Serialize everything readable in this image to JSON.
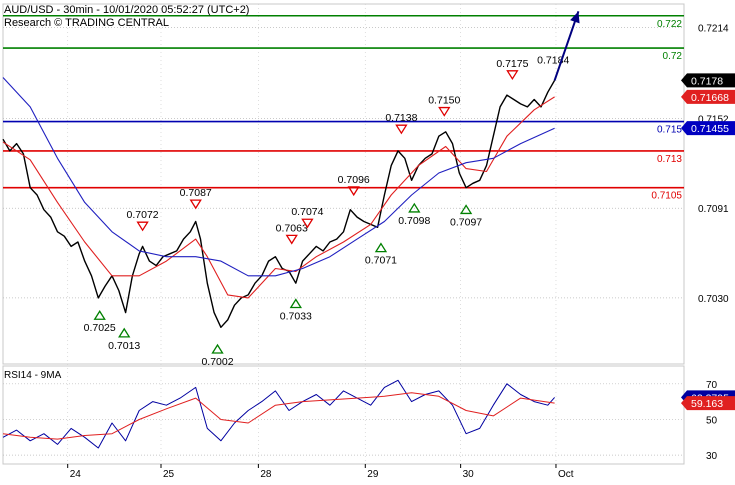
{
  "header": {
    "line1": "AUD/USD - 30min - 10/01/2020 05:52:27 (UTC+2)",
    "line2": "Research © TRADING CENTRAL"
  },
  "colors": {
    "price": "#000000",
    "ma_fast": "#e02020",
    "ma_slow": "#2020c0",
    "target": "#008000",
    "pivot": "#0000b0",
    "support": "#e00000",
    "arrow": "#000080",
    "rsi": "#0000a0",
    "rsi_ma": "#e02020",
    "badge_last": "#000000",
    "badge_ma_fast": "#e02020",
    "badge_ma_slow": "#0000c0",
    "marker_high": "#e00000",
    "marker_low": "#008000"
  },
  "chart_data": [
    {
      "type": "line",
      "panel": "price",
      "ylim": [
        0.6985,
        0.723
      ],
      "y_ticks": [
        "0.7214",
        "0.7152",
        "0.7091",
        "0.7030"
      ],
      "x_labels": [
        {
          "label": "24",
          "t": 0.095
        },
        {
          "label": "25",
          "t": 0.232
        },
        {
          "label": "28",
          "t": 0.375
        },
        {
          "label": "29",
          "t": 0.532
        },
        {
          "label": "30",
          "t": 0.672
        },
        {
          "label": "Oct",
          "t": 0.812
        }
      ],
      "levels": [
        {
          "value": 0.7222,
          "label": "0.722",
          "kind": "target"
        },
        {
          "value": 0.72,
          "label": "0.72",
          "kind": "target"
        },
        {
          "value": 0.715,
          "label": "0.715",
          "kind": "pivot"
        },
        {
          "value": 0.713,
          "label": "0.713",
          "kind": "support"
        },
        {
          "value": 0.7105,
          "label": "0.7105",
          "kind": "support"
        }
      ],
      "badges": [
        {
          "value": 0.7178,
          "label": "0.7178",
          "kind": "last"
        },
        {
          "value": 0.71668,
          "label": "0.71668",
          "kind": "ma_fast"
        },
        {
          "value": 0.71455,
          "label": "0.71455",
          "kind": "ma_slow"
        }
      ],
      "annotations": [
        {
          "label": "0.7072",
          "t": 0.205,
          "value": 0.7072,
          "kind": "high"
        },
        {
          "label": "0.7087",
          "t": 0.283,
          "value": 0.7087,
          "kind": "high"
        },
        {
          "label": "0.7063",
          "t": 0.424,
          "value": 0.7063,
          "kind": "high"
        },
        {
          "label": "0.7074",
          "t": 0.447,
          "value": 0.7074,
          "kind": "high"
        },
        {
          "label": "0.7096",
          "t": 0.515,
          "value": 0.7096,
          "kind": "high"
        },
        {
          "label": "0.7138",
          "t": 0.585,
          "value": 0.7138,
          "kind": "high"
        },
        {
          "label": "0.7150",
          "t": 0.648,
          "value": 0.715,
          "kind": "high"
        },
        {
          "label": "0.7175",
          "t": 0.748,
          "value": 0.7175,
          "kind": "high"
        },
        {
          "label": "0.7184",
          "t": 0.808,
          "value": 0.7184,
          "kind": "plain"
        },
        {
          "label": "0.7025",
          "t": 0.142,
          "value": 0.7025,
          "kind": "low"
        },
        {
          "label": "0.7013",
          "t": 0.178,
          "value": 0.7013,
          "kind": "low"
        },
        {
          "label": "0.7002",
          "t": 0.315,
          "value": 0.7002,
          "kind": "low"
        },
        {
          "label": "0.7033",
          "t": 0.43,
          "value": 0.7033,
          "kind": "low"
        },
        {
          "label": "0.7071",
          "t": 0.555,
          "value": 0.7071,
          "kind": "low"
        },
        {
          "label": "0.7098",
          "t": 0.604,
          "value": 0.7098,
          "kind": "low"
        },
        {
          "label": "0.7097",
          "t": 0.68,
          "value": 0.7097,
          "kind": "low"
        }
      ],
      "projection": {
        "from": [
          0.81,
          0.7178
        ],
        "to": [
          0.845,
          0.7225
        ]
      },
      "series": [
        {
          "role": "price",
          "points": [
            [
              0.0,
              0.7138
            ],
            [
              0.01,
              0.713
            ],
            [
              0.02,
              0.7135
            ],
            [
              0.03,
              0.7128
            ],
            [
              0.04,
              0.7105
            ],
            [
              0.05,
              0.71
            ],
            [
              0.06,
              0.709
            ],
            [
              0.07,
              0.7085
            ],
            [
              0.08,
              0.7075
            ],
            [
              0.09,
              0.7072
            ],
            [
              0.1,
              0.7065
            ],
            [
              0.11,
              0.7068
            ],
            [
              0.12,
              0.7055
            ],
            [
              0.13,
              0.7045
            ],
            [
              0.14,
              0.703
            ],
            [
              0.15,
              0.7038
            ],
            [
              0.16,
              0.7045
            ],
            [
              0.17,
              0.7035
            ],
            [
              0.18,
              0.702
            ],
            [
              0.19,
              0.7045
            ],
            [
              0.2,
              0.706
            ],
            [
              0.205,
              0.7065
            ],
            [
              0.215,
              0.7055
            ],
            [
              0.225,
              0.7052
            ],
            [
              0.235,
              0.7058
            ],
            [
              0.245,
              0.706
            ],
            [
              0.255,
              0.7062
            ],
            [
              0.265,
              0.707
            ],
            [
              0.275,
              0.7075
            ],
            [
              0.283,
              0.7082
            ],
            [
              0.29,
              0.707
            ],
            [
              0.3,
              0.704
            ],
            [
              0.31,
              0.702
            ],
            [
              0.32,
              0.701
            ],
            [
              0.33,
              0.7015
            ],
            [
              0.34,
              0.7025
            ],
            [
              0.35,
              0.703
            ],
            [
              0.36,
              0.7032
            ],
            [
              0.37,
              0.704
            ],
            [
              0.38,
              0.7045
            ],
            [
              0.39,
              0.7055
            ],
            [
              0.4,
              0.7058
            ],
            [
              0.41,
              0.705
            ],
            [
              0.42,
              0.7048
            ],
            [
              0.43,
              0.704
            ],
            [
              0.44,
              0.7055
            ],
            [
              0.45,
              0.706
            ],
            [
              0.46,
              0.7065
            ],
            [
              0.47,
              0.7062
            ],
            [
              0.48,
              0.7068
            ],
            [
              0.49,
              0.707
            ],
            [
              0.5,
              0.7075
            ],
            [
              0.51,
              0.709
            ],
            [
              0.52,
              0.7085
            ],
            [
              0.53,
              0.7082
            ],
            [
              0.54,
              0.708
            ],
            [
              0.55,
              0.7078
            ],
            [
              0.56,
              0.71
            ],
            [
              0.57,
              0.712
            ],
            [
              0.58,
              0.713
            ],
            [
              0.59,
              0.7125
            ],
            [
              0.6,
              0.711
            ],
            [
              0.61,
              0.712
            ],
            [
              0.62,
              0.7125
            ],
            [
              0.63,
              0.7128
            ],
            [
              0.64,
              0.714
            ],
            [
              0.65,
              0.7143
            ],
            [
              0.66,
              0.7135
            ],
            [
              0.67,
              0.7115
            ],
            [
              0.68,
              0.7105
            ],
            [
              0.69,
              0.7108
            ],
            [
              0.7,
              0.711
            ],
            [
              0.71,
              0.712
            ],
            [
              0.72,
              0.714
            ],
            [
              0.73,
              0.716
            ],
            [
              0.74,
              0.7168
            ],
            [
              0.75,
              0.7165
            ],
            [
              0.76,
              0.7162
            ],
            [
              0.77,
              0.716
            ],
            [
              0.78,
              0.7165
            ],
            [
              0.79,
              0.716
            ],
            [
              0.8,
              0.717
            ],
            [
              0.81,
              0.7178
            ]
          ]
        },
        {
          "role": "ma_fast",
          "points": [
            [
              0.0,
              0.7136
            ],
            [
              0.04,
              0.7124
            ],
            [
              0.08,
              0.7095
            ],
            [
              0.12,
              0.7068
            ],
            [
              0.16,
              0.7045
            ],
            [
              0.2,
              0.7045
            ],
            [
              0.24,
              0.7055
            ],
            [
              0.283,
              0.707
            ],
            [
              0.3,
              0.7058
            ],
            [
              0.33,
              0.7032
            ],
            [
              0.36,
              0.703
            ],
            [
              0.4,
              0.705
            ],
            [
              0.43,
              0.7048
            ],
            [
              0.46,
              0.7058
            ],
            [
              0.5,
              0.7068
            ],
            [
              0.54,
              0.708
            ],
            [
              0.57,
              0.71
            ],
            [
              0.61,
              0.712
            ],
            [
              0.65,
              0.7133
            ],
            [
              0.68,
              0.7118
            ],
            [
              0.71,
              0.7116
            ],
            [
              0.74,
              0.714
            ],
            [
              0.78,
              0.7158
            ],
            [
              0.81,
              0.71668
            ]
          ]
        },
        {
          "role": "ma_slow",
          "points": [
            [
              0.0,
              0.718
            ],
            [
              0.04,
              0.716
            ],
            [
              0.08,
              0.7125
            ],
            [
              0.12,
              0.7095
            ],
            [
              0.16,
              0.7075
            ],
            [
              0.2,
              0.7062
            ],
            [
              0.24,
              0.7058
            ],
            [
              0.283,
              0.7058
            ],
            [
              0.32,
              0.7055
            ],
            [
              0.36,
              0.7045
            ],
            [
              0.4,
              0.7045
            ],
            [
              0.44,
              0.705
            ],
            [
              0.48,
              0.7058
            ],
            [
              0.52,
              0.707
            ],
            [
              0.56,
              0.7082
            ],
            [
              0.6,
              0.71
            ],
            [
              0.64,
              0.7115
            ],
            [
              0.68,
              0.7122
            ],
            [
              0.72,
              0.7125
            ],
            [
              0.76,
              0.7135
            ],
            [
              0.81,
              0.71455
            ]
          ]
        }
      ]
    },
    {
      "type": "line",
      "panel": "rsi",
      "title": "RSI14 - 9MA",
      "ylim": [
        25,
        80
      ],
      "y_ticks": [
        "70",
        "50",
        "30"
      ],
      "badges": [
        {
          "value": 62.3795,
          "label": "62.3795",
          "kind": "rsi"
        },
        {
          "value": 59.163,
          "label": "59.163",
          "kind": "rsi_ma"
        }
      ],
      "series": [
        {
          "role": "rsi",
          "points": [
            [
              0.0,
              40
            ],
            [
              0.02,
              44
            ],
            [
              0.04,
              38
            ],
            [
              0.06,
              42
            ],
            [
              0.08,
              36
            ],
            [
              0.1,
              45
            ],
            [
              0.12,
              40
            ],
            [
              0.14,
              34
            ],
            [
              0.16,
              48
            ],
            [
              0.18,
              38
            ],
            [
              0.2,
              55
            ],
            [
              0.22,
              60
            ],
            [
              0.24,
              58
            ],
            [
              0.26,
              62
            ],
            [
              0.283,
              68
            ],
            [
              0.3,
              45
            ],
            [
              0.32,
              38
            ],
            [
              0.34,
              48
            ],
            [
              0.36,
              55
            ],
            [
              0.38,
              60
            ],
            [
              0.4,
              66
            ],
            [
              0.42,
              55
            ],
            [
              0.44,
              60
            ],
            [
              0.46,
              64
            ],
            [
              0.48,
              58
            ],
            [
              0.5,
              66
            ],
            [
              0.52,
              62
            ],
            [
              0.54,
              58
            ],
            [
              0.56,
              68
            ],
            [
              0.58,
              72
            ],
            [
              0.6,
              60
            ],
            [
              0.62,
              64
            ],
            [
              0.64,
              66
            ],
            [
              0.66,
              58
            ],
            [
              0.68,
              42
            ],
            [
              0.7,
              45
            ],
            [
              0.72,
              58
            ],
            [
              0.74,
              70
            ],
            [
              0.76,
              64
            ],
            [
              0.78,
              60
            ],
            [
              0.8,
              58
            ],
            [
              0.81,
              62.38
            ]
          ]
        },
        {
          "role": "rsi_ma",
          "points": [
            [
              0.0,
              42
            ],
            [
              0.04,
              40
            ],
            [
              0.08,
              39
            ],
            [
              0.12,
              41
            ],
            [
              0.16,
              42
            ],
            [
              0.2,
              50
            ],
            [
              0.24,
              56
            ],
            [
              0.283,
              62
            ],
            [
              0.32,
              50
            ],
            [
              0.36,
              48
            ],
            [
              0.4,
              58
            ],
            [
              0.44,
              60
            ],
            [
              0.48,
              61
            ],
            [
              0.52,
              62
            ],
            [
              0.56,
              63
            ],
            [
              0.6,
              65
            ],
            [
              0.64,
              63
            ],
            [
              0.68,
              55
            ],
            [
              0.72,
              52
            ],
            [
              0.76,
              62
            ],
            [
              0.81,
              59.16
            ]
          ]
        }
      ]
    }
  ]
}
